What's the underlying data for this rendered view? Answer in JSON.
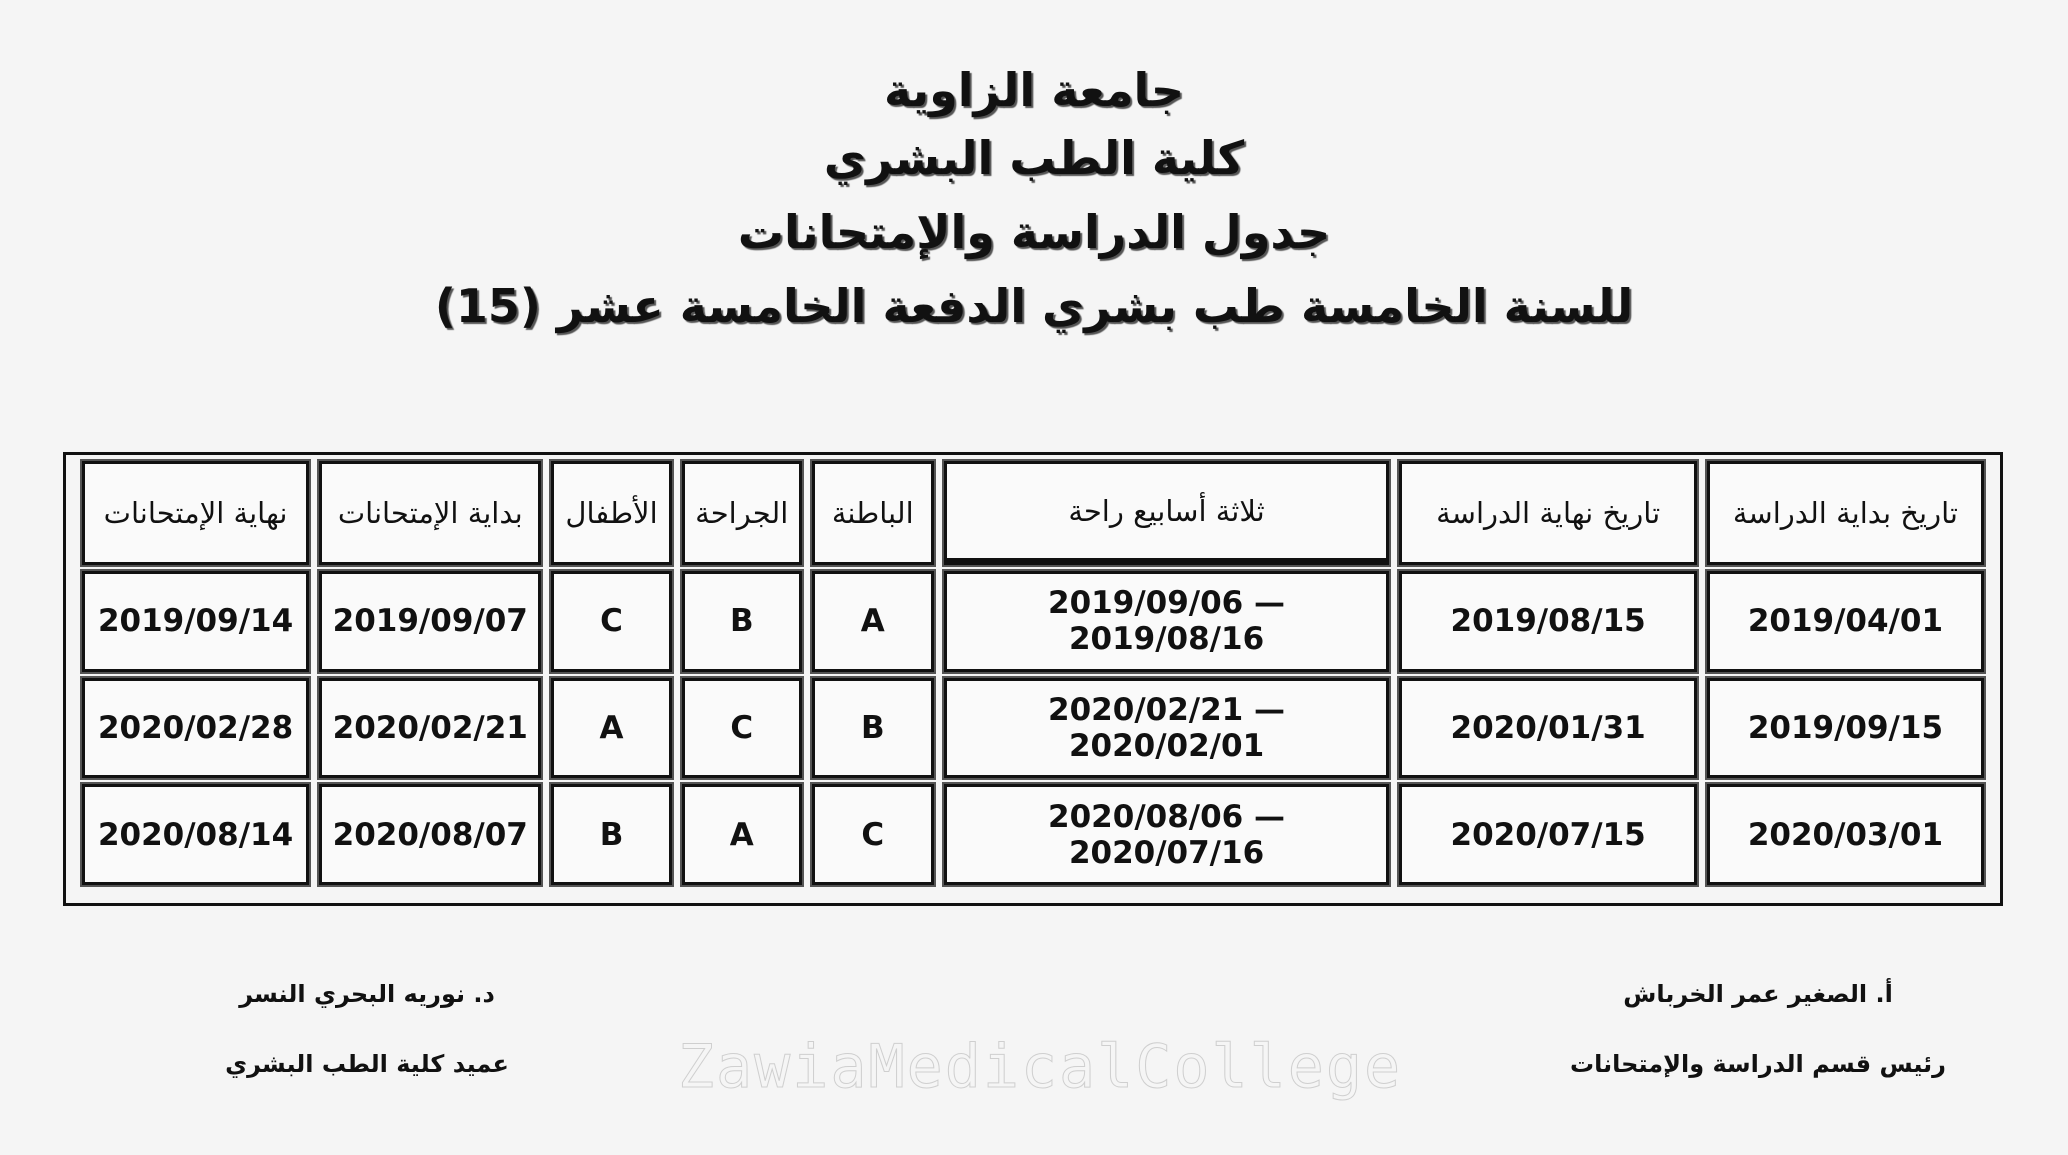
{
  "header": {
    "university": "جامعة  الزاوية",
    "faculty": "كلية الطب البشري",
    "schedule_title": "جدول الدراسة والإمتحانات",
    "subtitle": "للسنة الخامسة طب بشري الدفعة الخامسة عشر (15)"
  },
  "table": {
    "columns": [
      "تاريخ بداية الدراسة",
      "تاريخ نهاية الدراسة",
      "ثلاثة أسابيع راحة",
      "الباطنة",
      "الجراحة",
      "الأطفال",
      "بداية الإمتحانات",
      "نهاية الإمتحانات"
    ],
    "rows": [
      [
        "2019/04/01",
        "2019/08/15",
        "2019/09/06 — 2019/08/16",
        "A",
        "B",
        "C",
        "2019/09/07",
        "2019/09/14"
      ],
      [
        "2019/09/15",
        "2020/01/31",
        "2020/02/21 — 2020/02/01",
        "B",
        "C",
        "A",
        "2020/02/21",
        "2020/02/28"
      ],
      [
        "2020/03/01",
        "2020/07/15",
        "2020/08/06 — 2020/07/16",
        "C",
        "A",
        "B",
        "2020/08/07",
        "2020/08/14"
      ]
    ]
  },
  "signatures": {
    "right_name": "أ. الصغير عمر الخرباش",
    "right_title": "رئيس قسم الدراسة والإمتحانات",
    "left_name": "د. نوريه البحري النسر",
    "left_title": "عميد كلية الطب البشري"
  },
  "watermark": "ZawiaMedicalCollege"
}
